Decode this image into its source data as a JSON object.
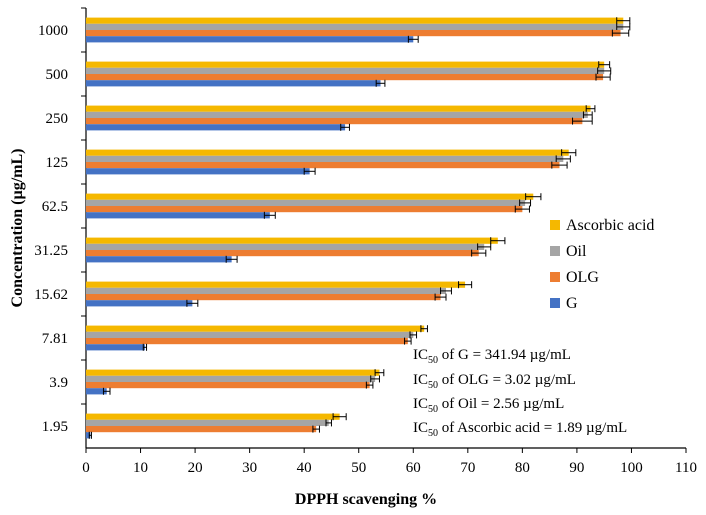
{
  "chart_data": {
    "type": "bar",
    "orientation": "horizontal",
    "xlabel": "DPPH scavenging %",
    "ylabel": "Concentration (µg/mL)",
    "xlim": [
      0,
      110
    ],
    "xticks": [
      0,
      10,
      20,
      30,
      40,
      50,
      60,
      70,
      80,
      90,
      100,
      110
    ],
    "categories": [
      "1.95",
      "3.9",
      "7.81",
      "15.62",
      "31.25",
      "62.5",
      "125",
      "250",
      "500",
      "1000"
    ],
    "series": [
      {
        "name": "Ascorbic acid",
        "color": "#f5b800",
        "values": [
          46.5,
          53.8,
          62.0,
          69.5,
          75.5,
          82.0,
          88.5,
          92.5,
          95.0,
          98.5
        ],
        "errors": [
          1.2,
          0.8,
          0.6,
          1.2,
          1.3,
          1.4,
          1.3,
          0.8,
          1.0,
          1.2
        ]
      },
      {
        "name": "Oil",
        "color": "#a5a5a5",
        "values": [
          44.5,
          53.0,
          60.0,
          66.0,
          73.0,
          80.5,
          87.5,
          92.0,
          95.0,
          98.5
        ],
        "errors": [
          0.5,
          0.8,
          0.6,
          1.0,
          1.2,
          1.0,
          1.3,
          0.8,
          1.2,
          1.2
        ]
      },
      {
        "name": "OLG",
        "color": "#ed7d31",
        "values": [
          42.2,
          52.0,
          59.0,
          65.0,
          72.0,
          80.0,
          86.8,
          91.0,
          94.8,
          98.0
        ],
        "errors": [
          0.6,
          0.6,
          0.6,
          1.0,
          1.3,
          1.3,
          1.4,
          1.8,
          1.3,
          1.5
        ]
      },
      {
        "name": "G",
        "color": "#4472c4",
        "values": [
          0.8,
          3.8,
          10.8,
          19.5,
          26.7,
          33.7,
          41.0,
          47.5,
          54.0,
          60.0
        ],
        "errors": [
          0.2,
          0.6,
          0.3,
          1.0,
          1.0,
          1.0,
          1.0,
          0.8,
          0.8,
          0.9
        ]
      }
    ],
    "legend_order": [
      "Ascorbic acid",
      "Oil",
      "OLG",
      "G"
    ],
    "legend": "right",
    "grid": false,
    "annotations": [
      {
        "pre": "IC",
        "sub": "50",
        "post": " of G = 341.94 µg/mL"
      },
      {
        "pre": "IC",
        "sub": "50",
        "post": " of OLG = 3.02 µg/mL"
      },
      {
        "pre": "IC",
        "sub": "50",
        "post": " of Oil = 2.56 µg/mL"
      },
      {
        "pre": "IC",
        "sub": "50",
        "post": " of Ascorbic acid = 1.89 µg/mL"
      }
    ]
  }
}
